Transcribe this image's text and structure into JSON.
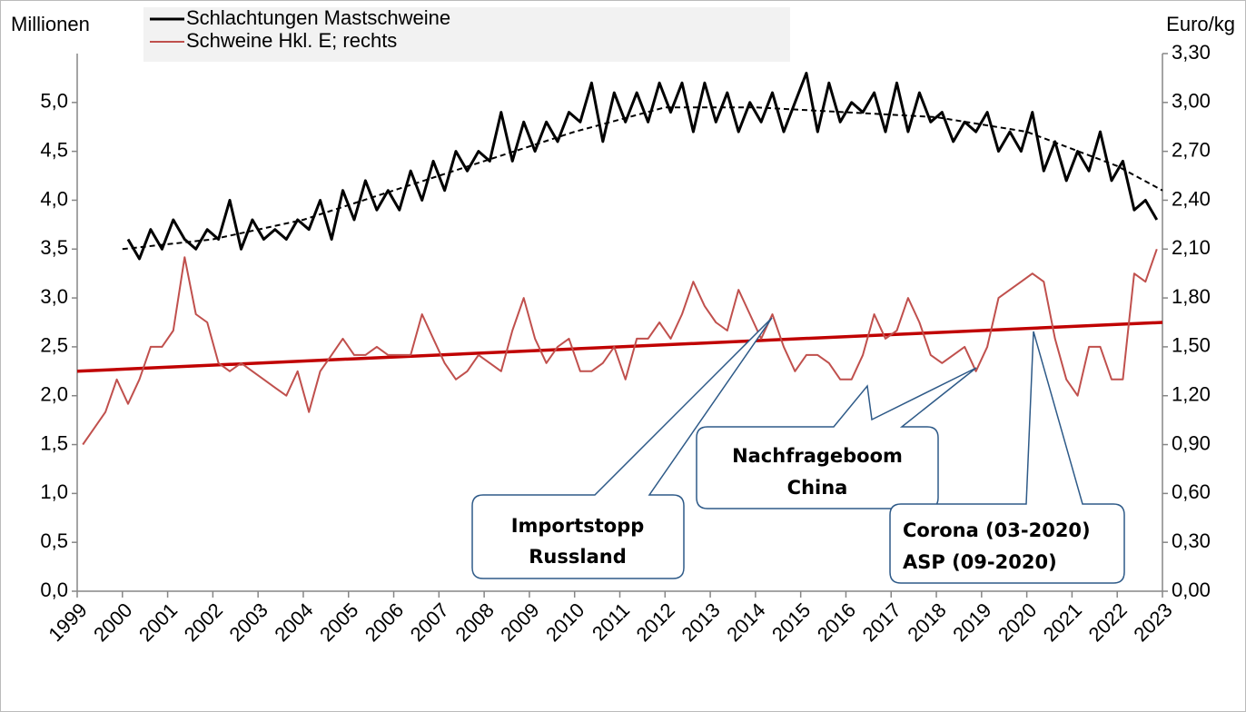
{
  "chart_data": {
    "type": "line",
    "y_label": "Millionen",
    "y2_label": "Euro/kg",
    "xlim": [
      1999,
      2023
    ],
    "xticks": [
      1999,
      2000,
      2001,
      2002,
      2003,
      2004,
      2005,
      2006,
      2007,
      2008,
      2009,
      2010,
      2011,
      2012,
      2013,
      2014,
      2015,
      2016,
      2017,
      2018,
      2019,
      2020,
      2021,
      2022,
      2023
    ],
    "ylim": [
      0,
      5.5
    ],
    "yticks": [
      {
        "value": 0,
        "label": "0,0"
      },
      {
        "value": 0.5,
        "label": "0,5"
      },
      {
        "value": 1,
        "label": "1,0"
      },
      {
        "value": 1.5,
        "label": "1,5"
      },
      {
        "value": 2,
        "label": "2,0"
      },
      {
        "value": 2.5,
        "label": "2,5"
      },
      {
        "value": 3,
        "label": "3,0"
      },
      {
        "value": 3.5,
        "label": "3,5"
      },
      {
        "value": 4,
        "label": "4,0"
      },
      {
        "value": 4.5,
        "label": "4,5"
      },
      {
        "value": 5,
        "label": "5,0"
      }
    ],
    "y2lim": [
      0,
      3.3
    ],
    "y2ticks": [
      {
        "value": 0,
        "label": "0,00"
      },
      {
        "value": 0.3,
        "label": "0,30"
      },
      {
        "value": 0.6,
        "label": "0,60"
      },
      {
        "value": 0.9,
        "label": "0,90"
      },
      {
        "value": 1.2,
        "label": "1,20"
      },
      {
        "value": 1.5,
        "label": "1,50"
      },
      {
        "value": 1.8,
        "label": "1,80"
      },
      {
        "value": 2.1,
        "label": "2,10"
      },
      {
        "value": 2.4,
        "label": "2,40"
      },
      {
        "value": 2.7,
        "label": "2,70"
      },
      {
        "value": 3.0,
        "label": "3,00"
      },
      {
        "value": 3.3,
        "label": "3,30"
      }
    ],
    "grid": false,
    "series": [
      {
        "name": "Schlachtungen Mastschweine",
        "color": "#000000",
        "width": 3,
        "x": [
          2000.125,
          2000.375,
          2000.625,
          2000.875,
          2001.125,
          2001.375,
          2001.625,
          2001.875,
          2002.125,
          2002.375,
          2002.625,
          2002.875,
          2003.125,
          2003.375,
          2003.625,
          2003.875,
          2004.125,
          2004.375,
          2004.625,
          2004.875,
          2005.125,
          2005.375,
          2005.625,
          2005.875,
          2006.125,
          2006.375,
          2006.625,
          2006.875,
          2007.125,
          2007.375,
          2007.625,
          2007.875,
          2008.125,
          2008.375,
          2008.625,
          2008.875,
          2009.125,
          2009.375,
          2009.625,
          2009.875,
          2010.125,
          2010.375,
          2010.625,
          2010.875,
          2011.125,
          2011.375,
          2011.625,
          2011.875,
          2012.125,
          2012.375,
          2012.625,
          2012.875,
          2013.125,
          2013.375,
          2013.625,
          2013.875,
          2014.125,
          2014.375,
          2014.625,
          2014.875,
          2015.125,
          2015.375,
          2015.625,
          2015.875,
          2016.125,
          2016.375,
          2016.625,
          2016.875,
          2017.125,
          2017.375,
          2017.625,
          2017.875,
          2018.125,
          2018.375,
          2018.625,
          2018.875,
          2019.125,
          2019.375,
          2019.625,
          2019.875,
          2020.125,
          2020.375,
          2020.625,
          2020.875,
          2021.125,
          2021.375,
          2021.625,
          2021.875,
          2022.125,
          2022.375,
          2022.625,
          2022.875
        ],
        "values": [
          3.6,
          3.4,
          3.7,
          3.5,
          3.8,
          3.6,
          3.5,
          3.7,
          3.6,
          4.0,
          3.5,
          3.8,
          3.6,
          3.7,
          3.6,
          3.8,
          3.7,
          4.0,
          3.6,
          4.1,
          3.8,
          4.2,
          3.9,
          4.1,
          3.9,
          4.3,
          4.0,
          4.4,
          4.1,
          4.5,
          4.3,
          4.5,
          4.4,
          4.9,
          4.4,
          4.8,
          4.5,
          4.8,
          4.6,
          4.9,
          4.8,
          5.2,
          4.6,
          5.1,
          4.8,
          5.1,
          4.8,
          5.2,
          4.9,
          5.2,
          4.7,
          5.2,
          4.8,
          5.1,
          4.7,
          5.0,
          4.8,
          5.1,
          4.7,
          5.0,
          5.3,
          4.7,
          5.2,
          4.8,
          5.0,
          4.9,
          5.1,
          4.7,
          5.2,
          4.7,
          5.1,
          4.8,
          4.9,
          4.6,
          4.8,
          4.7,
          4.9,
          4.5,
          4.7,
          4.5,
          4.9,
          4.3,
          4.6,
          4.2,
          4.5,
          4.3,
          4.7,
          4.2,
          4.4,
          3.9,
          4.0,
          3.8
        ]
      },
      {
        "name": "Schweine Hkl. E; rechts",
        "color": "#c0504d",
        "width": 2,
        "axis": "y2",
        "x": [
          1999.125,
          1999.375,
          1999.625,
          1999.875,
          2000.125,
          2000.375,
          2000.625,
          2000.875,
          2001.125,
          2001.375,
          2001.625,
          2001.875,
          2002.125,
          2002.375,
          2002.625,
          2002.875,
          2003.125,
          2003.375,
          2003.625,
          2003.875,
          2004.125,
          2004.375,
          2004.625,
          2004.875,
          2005.125,
          2005.375,
          2005.625,
          2005.875,
          2006.125,
          2006.375,
          2006.625,
          2006.875,
          2007.125,
          2007.375,
          2007.625,
          2007.875,
          2008.125,
          2008.375,
          2008.625,
          2008.875,
          2009.125,
          2009.375,
          2009.625,
          2009.875,
          2010.125,
          2010.375,
          2010.625,
          2010.875,
          2011.125,
          2011.375,
          2011.625,
          2011.875,
          2012.125,
          2012.375,
          2012.625,
          2012.875,
          2013.125,
          2013.375,
          2013.625,
          2013.875,
          2014.125,
          2014.375,
          2014.625,
          2014.875,
          2015.125,
          2015.375,
          2015.625,
          2015.875,
          2016.125,
          2016.375,
          2016.625,
          2016.875,
          2017.125,
          2017.375,
          2017.625,
          2017.875,
          2018.125,
          2018.375,
          2018.625,
          2018.875,
          2019.125,
          2019.375,
          2019.625,
          2019.875,
          2020.125,
          2020.375,
          2020.625,
          2020.875,
          2021.125,
          2021.375,
          2021.625,
          2021.875,
          2022.125,
          2022.375,
          2022.625,
          2022.875
        ],
        "values": [
          0.9,
          1.0,
          1.1,
          1.3,
          1.15,
          1.3,
          1.5,
          1.5,
          1.6,
          2.05,
          1.7,
          1.65,
          1.4,
          1.35,
          1.4,
          1.35,
          1.3,
          1.25,
          1.2,
          1.35,
          1.1,
          1.35,
          1.45,
          1.55,
          1.45,
          1.45,
          1.5,
          1.45,
          1.45,
          1.45,
          1.7,
          1.55,
          1.4,
          1.3,
          1.35,
          1.45,
          1.4,
          1.35,
          1.6,
          1.8,
          1.55,
          1.4,
          1.5,
          1.55,
          1.35,
          1.35,
          1.4,
          1.5,
          1.3,
          1.55,
          1.55,
          1.65,
          1.55,
          1.7,
          1.9,
          1.75,
          1.65,
          1.6,
          1.85,
          1.7,
          1.55,
          1.7,
          1.5,
          1.35,
          1.45,
          1.45,
          1.4,
          1.3,
          1.3,
          1.45,
          1.7,
          1.55,
          1.6,
          1.8,
          1.65,
          1.45,
          1.4,
          1.45,
          1.5,
          1.35,
          1.5,
          1.8,
          1.85,
          1.9,
          1.95,
          1.9,
          1.55,
          1.3,
          1.2,
          1.5,
          1.5,
          1.3,
          1.3,
          1.95,
          1.9,
          2.1
        ]
      },
      {
        "color": "#000000",
        "width": 2,
        "dashed": true,
        "x": [
          2000,
          2002,
          2004,
          2006,
          2008,
          2010,
          2012,
          2014,
          2016,
          2018,
          2020,
          2022,
          2023
        ],
        "values": [
          3.5,
          3.6,
          3.8,
          4.1,
          4.4,
          4.7,
          4.95,
          4.95,
          4.9,
          4.85,
          4.7,
          4.35,
          4.1
        ]
      },
      {
        "color": "#c00000",
        "width": 3.5,
        "axis": "y2",
        "x": [
          1999,
          2023
        ],
        "values": [
          1.35,
          1.65
        ]
      }
    ],
    "annotations": [
      [
        "Importstopp",
        "Russland"
      ],
      [
        "Nachfrageboom",
        "China"
      ],
      [
        "Corona (03-2020)",
        "ASP (09-2020)"
      ]
    ]
  }
}
